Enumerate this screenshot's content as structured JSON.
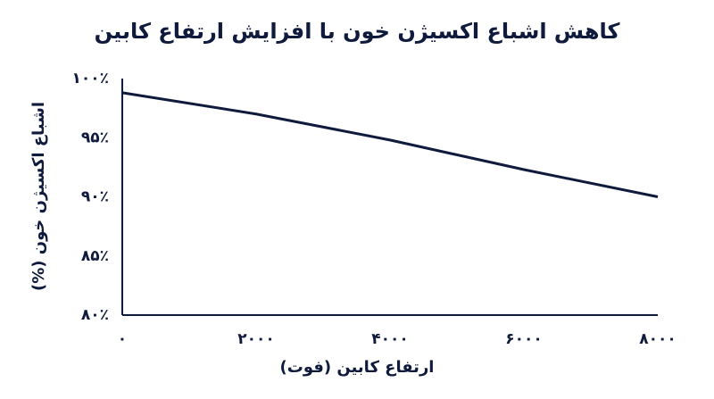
{
  "chart_data": {
    "type": "line",
    "title": "کاهش اشباع اکسیژن خون با افزایش ارتفاع کابین",
    "x_label": "ارتفاع کابین (فوت)",
    "y_label": "اشباع اکسیژن خون (%)",
    "x": [
      0,
      2000,
      4000,
      6000,
      8000
    ],
    "series": [
      {
        "color": "#0f1a3c",
        "values": [
          98.8,
          97.0,
          94.8,
          92.3,
          90.0
        ]
      }
    ],
    "xlim": [
      0,
      8000
    ],
    "xticks": [
      {
        "value": 0,
        "label": "۰"
      },
      {
        "value": 2000,
        "label": "۲۰۰۰"
      },
      {
        "value": 4000,
        "label": "۴۰۰۰"
      },
      {
        "value": 6000,
        "label": "۶۰۰۰"
      },
      {
        "value": 8000,
        "label": "۸۰۰۰"
      }
    ],
    "ylim": [
      80,
      100
    ],
    "yticks": [
      {
        "value": 80,
        "label": "۸۰٪"
      },
      {
        "value": 85,
        "label": "۸۵٪"
      },
      {
        "value": 90,
        "label": "۹۰٪"
      },
      {
        "value": 95,
        "label": "۹۵٪"
      },
      {
        "value": 100,
        "label": "۱۰۰٪"
      }
    ],
    "grid": false
  }
}
